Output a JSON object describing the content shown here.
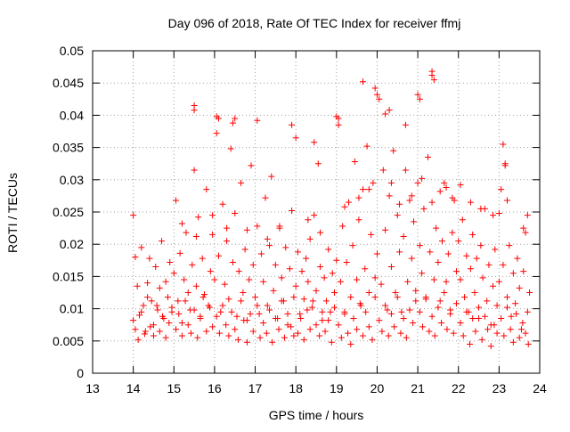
{
  "chart_data": {
    "type": "scatter",
    "title": "Day 096 of 2018, Rate Of TEC Index for receiver ffmj",
    "xlabel": "GPS time / hours",
    "ylabel": "ROTI / TECUs",
    "xlim": [
      13,
      24
    ],
    "ylim": [
      0,
      0.05
    ],
    "x_ticks": [
      "13",
      "14",
      "15",
      "16",
      "17",
      "18",
      "19",
      "20",
      "21",
      "22",
      "23",
      "24"
    ],
    "y_ticks": [
      "0",
      "0.005",
      "0.01",
      "0.015",
      "0.02",
      "0.025",
      "0.03",
      "0.035",
      "0.04",
      "0.045",
      "0.05"
    ],
    "grid": true,
    "marker": "+",
    "color": "#ff0000",
    "series": [
      {
        "name": "ROTI",
        "x": [
          14.0,
          14.05,
          14.1,
          14.15,
          14.2,
          14.25,
          14.3,
          14.35,
          14.4,
          14.45,
          14.5,
          14.55,
          14.6,
          14.65,
          14.7,
          14.75,
          14.8,
          14.85,
          14.9,
          14.95,
          15.0,
          15.05,
          15.1,
          15.15,
          15.2,
          15.25,
          15.3,
          15.35,
          15.4,
          15.45,
          15.5,
          15.55,
          15.6,
          15.65,
          15.7,
          15.75,
          15.8,
          15.85,
          15.9,
          15.95,
          16.0,
          16.05,
          16.1,
          16.15,
          16.2,
          16.25,
          16.3,
          16.35,
          16.4,
          16.45,
          16.5,
          16.55,
          16.6,
          16.65,
          16.7,
          16.75,
          16.8,
          16.85,
          16.9,
          16.95,
          17.0,
          17.05,
          17.1,
          17.15,
          17.2,
          17.25,
          17.3,
          17.35,
          17.4,
          17.45,
          17.5,
          17.55,
          17.6,
          17.65,
          17.7,
          17.75,
          17.8,
          17.85,
          17.9,
          17.95,
          18.0,
          18.05,
          18.1,
          18.15,
          18.2,
          18.25,
          18.3,
          18.35,
          18.4,
          18.45,
          18.5,
          18.55,
          18.6,
          18.65,
          18.7,
          18.75,
          18.8,
          18.85,
          18.9,
          18.95,
          19.0,
          19.05,
          19.1,
          19.15,
          19.2,
          19.25,
          19.3,
          19.35,
          19.4,
          19.45,
          19.5,
          19.55,
          19.6,
          19.65,
          19.7,
          19.75,
          19.8,
          19.85,
          19.9,
          19.95,
          20.0,
          20.05,
          20.1,
          20.15,
          20.2,
          20.25,
          20.3,
          20.35,
          20.4,
          20.45,
          20.5,
          20.55,
          20.6,
          20.65,
          20.7,
          20.75,
          20.8,
          20.85,
          20.9,
          20.95,
          21.0,
          21.05,
          21.1,
          21.15,
          21.2,
          21.25,
          21.3,
          21.35,
          21.4,
          21.45,
          21.5,
          21.55,
          21.6,
          21.65,
          21.7,
          21.75,
          21.8,
          21.85,
          21.9,
          21.95,
          22.0,
          22.05,
          22.1,
          22.15,
          22.2,
          22.25,
          22.3,
          22.35,
          22.4,
          22.45,
          22.5,
          22.55,
          22.6,
          22.65,
          22.7,
          22.75,
          22.8,
          22.85,
          22.9,
          22.95,
          23.0,
          23.05,
          23.1,
          23.15,
          23.2,
          23.25,
          23.3,
          23.35,
          23.4,
          23.45,
          23.5,
          23.55,
          23.6,
          23.65,
          23.7,
          23.75,
          14.0,
          14.05,
          14.12,
          14.2,
          14.28,
          14.35,
          14.42,
          14.5,
          14.58,
          14.65,
          14.72,
          14.8,
          14.88,
          14.95,
          15.05,
          15.12,
          15.2,
          15.28,
          15.35,
          15.42,
          15.5,
          15.58,
          15.65,
          15.72,
          15.8,
          15.88,
          15.95,
          16.05,
          16.12,
          16.2,
          16.28,
          16.35,
          16.42,
          16.5,
          16.58,
          16.65,
          16.72,
          16.8,
          16.88,
          16.95,
          17.05,
          17.12,
          17.2,
          17.28,
          17.35,
          17.42,
          17.5,
          17.58,
          17.65,
          17.72,
          17.8,
          17.88,
          17.95,
          18.05,
          18.12,
          18.2,
          18.28,
          18.35,
          18.42,
          18.5,
          18.58,
          18.65,
          18.72,
          18.8,
          18.88,
          18.95,
          19.05,
          19.12,
          19.2,
          19.28,
          19.35,
          19.42,
          19.5,
          19.58,
          19.65,
          19.72,
          19.8,
          19.88,
          19.95,
          20.05,
          20.12,
          20.2,
          20.28,
          20.35,
          20.42,
          20.5,
          20.58,
          20.65,
          20.72,
          20.8,
          20.88,
          20.95,
          21.05,
          21.12,
          21.2,
          21.28,
          21.35,
          21.42,
          21.5,
          21.58,
          21.65,
          21.72,
          21.8,
          21.88,
          21.95,
          22.05,
          22.12,
          22.2,
          22.28,
          22.35,
          22.42,
          22.5,
          22.58,
          22.65,
          22.72,
          22.8,
          22.88,
          22.95,
          23.05,
          23.12,
          23.2,
          23.28,
          23.35,
          23.42,
          23.5,
          23.58,
          23.65,
          23.72,
          15.5,
          15.5,
          16.05,
          16.1,
          16.5,
          16.45,
          17.05,
          17.9,
          18.0,
          18.45,
          19.0,
          19.05,
          19.65,
          19.95,
          20.0,
          20.2,
          20.3,
          20.7,
          21.0,
          21.05,
          21.35,
          21.35,
          21.4,
          23.1,
          23.15,
          15.2,
          15.55,
          15.95,
          16.3,
          16.8,
          17.3,
          17.6,
          18.3,
          18.6,
          19.2,
          19.55,
          19.8,
          20.35,
          20.55,
          20.85,
          21.1,
          21.55,
          21.7,
          21.85,
          22.05,
          22.3,
          22.55,
          22.85,
          23.0,
          23.2,
          23.6,
          23.7
        ],
        "y": [
          0.0245,
          0.018,
          0.0135,
          0.009,
          0.0195,
          0.0105,
          0.0065,
          0.014,
          0.0178,
          0.0112,
          0.0075,
          0.0165,
          0.0098,
          0.0132,
          0.0205,
          0.0085,
          0.0142,
          0.0118,
          0.0172,
          0.0095,
          0.0155,
          0.0268,
          0.0112,
          0.0186,
          0.0078,
          0.0145,
          0.0218,
          0.0125,
          0.0098,
          0.0168,
          0.0315,
          0.0135,
          0.0242,
          0.0088,
          0.0178,
          0.0122,
          0.0285,
          0.0105,
          0.0158,
          0.0215,
          0.0145,
          0.0372,
          0.0182,
          0.0095,
          0.0262,
          0.0138,
          0.0205,
          0.0115,
          0.0348,
          0.0172,
          0.0248,
          0.0088,
          0.0158,
          0.0295,
          0.0125,
          0.0192,
          0.0082,
          0.0145,
          0.0322,
          0.0168,
          0.0118,
          0.0228,
          0.0092,
          0.0185,
          0.0142,
          0.0272,
          0.0105,
          0.0198,
          0.0305,
          0.0128,
          0.0168,
          0.0085,
          0.0225,
          0.0148,
          0.0112,
          0.0195,
          0.0075,
          0.0162,
          0.0252,
          0.0118,
          0.0135,
          0.0188,
          0.0092,
          0.0158,
          0.0115,
          0.0178,
          0.0142,
          0.0208,
          0.0102,
          0.0245,
          0.0128,
          0.0325,
          0.0165,
          0.0082,
          0.0148,
          0.0112,
          0.0192,
          0.0095,
          0.0155,
          0.0125,
          0.0175,
          0.0395,
          0.0142,
          0.0228,
          0.0095,
          0.0172,
          0.0265,
          0.0118,
          0.0198,
          0.0328,
          0.0145,
          0.0238,
          0.0105,
          0.0285,
          0.0162,
          0.0352,
          0.0125,
          0.0215,
          0.0295,
          0.0148,
          0.0185,
          0.0425,
          0.0138,
          0.0315,
          0.0222,
          0.0098,
          0.0275,
          0.0165,
          0.0345,
          0.0125,
          0.0245,
          0.0188,
          0.0095,
          0.0212,
          0.0315,
          0.0142,
          0.0268,
          0.0178,
          0.0235,
          0.0128,
          0.0295,
          0.0198,
          0.0155,
          0.0255,
          0.0118,
          0.0335,
          0.0188,
          0.0265,
          0.0145,
          0.0225,
          0.0172,
          0.0112,
          0.0205,
          0.0295,
          0.0142,
          0.0185,
          0.0098,
          0.0218,
          0.0268,
          0.0158,
          0.0205,
          0.0145,
          0.0238,
          0.0118,
          0.0182,
          0.0095,
          0.0162,
          0.0215,
          0.0125,
          0.0178,
          0.0085,
          0.0198,
          0.0148,
          0.0255,
          0.0112,
          0.0168,
          0.0075,
          0.0135,
          0.0192,
          0.0105,
          0.0142,
          0.0285,
          0.0168,
          0.0322,
          0.0118,
          0.0198,
          0.0088,
          0.0155,
          0.0108,
          0.0178,
          0.0132,
          0.0068,
          0.0158,
          0.0218,
          0.0095,
          0.0125,
          0.0082,
          0.0068,
          0.0052,
          0.0095,
          0.0061,
          0.0118,
          0.0072,
          0.0058,
          0.0105,
          0.0065,
          0.0088,
          0.0055,
          0.0078,
          0.0102,
          0.0068,
          0.0092,
          0.0058,
          0.0112,
          0.0075,
          0.0062,
          0.0098,
          0.0055,
          0.0085,
          0.0118,
          0.0065,
          0.0102,
          0.0072,
          0.0088,
          0.0062,
          0.0105,
          0.0075,
          0.0058,
          0.0095,
          0.0068,
          0.0052,
          0.0112,
          0.0082,
          0.0048,
          0.0092,
          0.0065,
          0.0105,
          0.0055,
          0.0078,
          0.0062,
          0.0098,
          0.0048,
          0.0085,
          0.0068,
          0.0112,
          0.0055,
          0.0092,
          0.0072,
          0.0058,
          0.0062,
          0.0085,
          0.0052,
          0.0098,
          0.0068,
          0.0112,
          0.0075,
          0.0058,
          0.0095,
          0.0065,
          0.0082,
          0.0048,
          0.0102,
          0.0075,
          0.0055,
          0.0092,
          0.0062,
          0.0045,
          0.0085,
          0.0068,
          0.0108,
          0.0058,
          0.0095,
          0.0072,
          0.0052,
          0.0118,
          0.0082,
          0.0065,
          0.0105,
          0.0058,
          0.0092,
          0.0072,
          0.0118,
          0.0062,
          0.0085,
          0.0055,
          0.0098,
          0.0078,
          0.0112,
          0.0095,
          0.0072,
          0.0115,
          0.0065,
          0.0088,
          0.0058,
          0.0102,
          0.0078,
          0.0125,
          0.0068,
          0.0092,
          0.0062,
          0.0108,
          0.0078,
          0.0058,
          0.0095,
          0.0045,
          0.0085,
          0.0065,
          0.0102,
          0.0052,
          0.0088,
          0.0068,
          0.0042,
          0.0075,
          0.0062,
          0.0085,
          0.0058,
          0.0102,
          0.0068,
          0.0048,
          0.0092,
          0.0055,
          0.0078,
          0.0062,
          0.0045,
          0.0415,
          0.0408,
          0.0398,
          0.0395,
          0.0395,
          0.0388,
          0.0392,
          0.0385,
          0.0365,
          0.0358,
          0.0398,
          0.0385,
          0.0452,
          0.0442,
          0.0432,
          0.0402,
          0.0408,
          0.0385,
          0.0432,
          0.0425,
          0.0468,
          0.0462,
          0.0455,
          0.0355,
          0.0325,
          0.0232,
          0.0212,
          0.0245,
          0.0225,
          0.0222,
          0.0208,
          0.0228,
          0.0238,
          0.0218,
          0.0258,
          0.0272,
          0.0285,
          0.0295,
          0.0262,
          0.0275,
          0.0302,
          0.0282,
          0.0288,
          0.0272,
          0.0292,
          0.0265,
          0.0255,
          0.0245,
          0.0248,
          0.0268,
          0.0225,
          0.0245
        ]
      }
    ]
  }
}
